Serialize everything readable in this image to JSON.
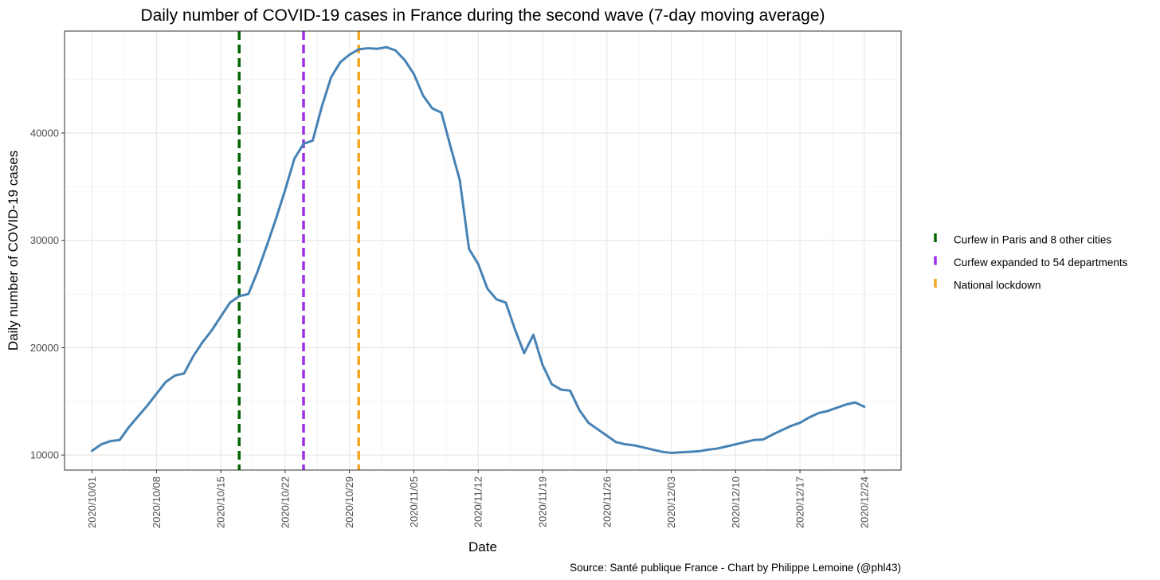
{
  "chart_data": {
    "type": "line",
    "title": "Daily number of COVID-19 cases in France during the second wave (7-day moving average)",
    "xlabel": "Date",
    "ylabel": "Daily number of COVID-19 cases",
    "caption": "Source: Santé publique France - Chart by Philippe Lemoine (@phl43)",
    "x_start": "2020-10-01",
    "x_ticks": [
      "2020/10/01",
      "2020/10/08",
      "2020/10/15",
      "2020/10/22",
      "2020/10/29",
      "2020/11/05",
      "2020/11/12",
      "2020/11/19",
      "2020/11/26",
      "2020/12/03",
      "2020/12/10",
      "2020/12/17",
      "2020/12/24"
    ],
    "y_ticks": [
      10000,
      20000,
      30000,
      40000
    ],
    "ylim": [
      8600,
      49500
    ],
    "xlim": [
      "2020-09-28",
      "2020-12-28"
    ],
    "grid": true,
    "legend_position": "right",
    "line_color": "#4682b4",
    "x": [
      "2020-10-01",
      "2020-10-02",
      "2020-10-03",
      "2020-10-04",
      "2020-10-05",
      "2020-10-06",
      "2020-10-07",
      "2020-10-08",
      "2020-10-09",
      "2020-10-10",
      "2020-10-11",
      "2020-10-12",
      "2020-10-13",
      "2020-10-14",
      "2020-10-15",
      "2020-10-16",
      "2020-10-17",
      "2020-10-18",
      "2020-10-19",
      "2020-10-20",
      "2020-10-21",
      "2020-10-22",
      "2020-10-23",
      "2020-10-24",
      "2020-10-25",
      "2020-10-26",
      "2020-10-27",
      "2020-10-28",
      "2020-10-29",
      "2020-10-30",
      "2020-10-31",
      "2020-11-01",
      "2020-11-02",
      "2020-11-03",
      "2020-11-04",
      "2020-11-05",
      "2020-11-06",
      "2020-11-07",
      "2020-11-08",
      "2020-11-09",
      "2020-11-10",
      "2020-11-11",
      "2020-11-12",
      "2020-11-13",
      "2020-11-14",
      "2020-11-15",
      "2020-11-16",
      "2020-11-17",
      "2020-11-18",
      "2020-11-19",
      "2020-11-20",
      "2020-11-21",
      "2020-11-22",
      "2020-11-23",
      "2020-11-24",
      "2020-11-25",
      "2020-11-26",
      "2020-11-27",
      "2020-11-28",
      "2020-11-29",
      "2020-11-30",
      "2020-12-01",
      "2020-12-02",
      "2020-12-03",
      "2020-12-04",
      "2020-12-05",
      "2020-12-06",
      "2020-12-07",
      "2020-12-08",
      "2020-12-09",
      "2020-12-10",
      "2020-12-11",
      "2020-12-12",
      "2020-12-13",
      "2020-12-14",
      "2020-12-15",
      "2020-12-16",
      "2020-12-17",
      "2020-12-18",
      "2020-12-19",
      "2020-12-20",
      "2020-12-21",
      "2020-12-22",
      "2020-12-23",
      "2020-12-24"
    ],
    "series": [
      {
        "values": [
          10400,
          11000,
          11300,
          11400,
          12600,
          13600,
          14600,
          15700,
          16800,
          17400,
          17600,
          19200,
          20500,
          21600,
          22900,
          24200,
          24800,
          25000,
          27100,
          29500,
          32000,
          34700,
          37600,
          39000,
          39300,
          42500,
          45200,
          46600,
          47300,
          47800,
          47900,
          47850,
          48000,
          47700,
          46800,
          45500,
          43500,
          42300,
          41900,
          38700,
          35600,
          29200,
          27800,
          25500,
          24500,
          24200,
          21700,
          19500,
          21200,
          18400,
          16600,
          16100,
          16000,
          14200,
          13000,
          12400,
          11800,
          11200,
          11000,
          10900,
          10700,
          10500,
          10300,
          10200,
          10250,
          10300,
          10350,
          10500,
          10600,
          10800,
          11000,
          11200,
          11400,
          11450,
          11900,
          12300,
          12700,
          13000,
          13500,
          13900,
          14100,
          14400,
          14700,
          14900,
          14500
        ]
      }
    ],
    "annotations": [
      {
        "date": "2020-10-17",
        "label": "Curfew in Paris and 8 other cities",
        "color": "#006400"
      },
      {
        "date": "2020-10-24",
        "label": "Curfew expanded to 54 departments",
        "color": "#9b30e8"
      },
      {
        "date": "2020-10-30",
        "label": "National lockdown",
        "color": "#f5a623"
      }
    ]
  }
}
